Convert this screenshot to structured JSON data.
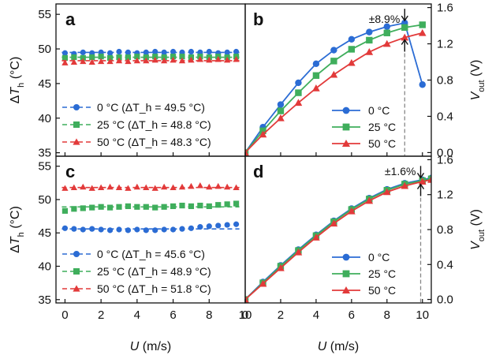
{
  "chart_data": [
    {
      "panel": "a",
      "type": "scatter",
      "xlabel": "U (m/s)",
      "ylabel": "ΔT_h (°C)",
      "xlim": [
        -0.5,
        10
      ],
      "ylim": [
        34.5,
        56.5
      ],
      "xticks": [
        0,
        2,
        4,
        6,
        8,
        10
      ],
      "yticks": [
        35,
        40,
        45,
        50,
        55
      ],
      "x": [
        0,
        0.5,
        1,
        1.5,
        2,
        2.5,
        3,
        3.5,
        4,
        4.5,
        5,
        5.5,
        6,
        6.5,
        7,
        7.5,
        8,
        8.5,
        9,
        9.5
      ],
      "series": [
        {
          "name": "0 °C",
          "legend": "0 °C (ΔT_h = 49.5 °C)",
          "mean": 49.5,
          "color": "#2b6cd4",
          "marker": "circle",
          "values": [
            49.4,
            49.3,
            49.5,
            49.4,
            49.5,
            49.4,
            49.6,
            49.5,
            49.4,
            49.5,
            49.6,
            49.5,
            49.6,
            49.5,
            49.6,
            49.5,
            49.6,
            49.4,
            49.5,
            49.6
          ]
        },
        {
          "name": "25 °C",
          "legend": "25 °C (ΔT_h = 48.8 °C)",
          "mean": 48.8,
          "color": "#3fae5c",
          "marker": "square",
          "values": [
            48.7,
            48.8,
            48.7,
            48.8,
            48.9,
            48.7,
            48.8,
            48.8,
            48.9,
            48.8,
            48.9,
            48.8,
            48.9,
            48.9,
            48.8,
            48.9,
            48.8,
            48.9,
            48.8,
            48.9
          ]
        },
        {
          "name": "50 °C",
          "legend": "50 °C (ΔT_h = 48.3 °C)",
          "mean": 48.3,
          "color": "#e23a3a",
          "marker": "triangle",
          "values": [
            48.0,
            48.1,
            48.2,
            48.1,
            48.2,
            48.2,
            48.3,
            48.2,
            48.3,
            48.3,
            48.4,
            48.3,
            48.4,
            48.3,
            48.4,
            48.5,
            48.4,
            48.5,
            48.4,
            48.5
          ]
        }
      ]
    },
    {
      "panel": "b",
      "type": "line",
      "xlabel": "U (m/s)",
      "ylabel": "V_out (V)",
      "xlim": [
        0,
        10.5
      ],
      "ylim": [
        -0.04,
        1.64
      ],
      "xticks": [
        0,
        2,
        4,
        6,
        8,
        10
      ],
      "yticks": [
        0.0,
        0.4,
        0.8,
        1.2,
        1.6
      ],
      "ytick_labels": [
        "0.0",
        "0.4",
        "0.8",
        "1.2",
        "1.6"
      ],
      "x": [
        0,
        1,
        2,
        3,
        4,
        5,
        6,
        7,
        8,
        9,
        10
      ],
      "series": [
        {
          "name": "0 °C",
          "color": "#2b6cd4",
          "marker": "circle",
          "values": [
            0.0,
            0.28,
            0.53,
            0.77,
            0.98,
            1.13,
            1.25,
            1.33,
            1.39,
            1.43,
            0.75
          ]
        },
        {
          "name": "25 °C",
          "color": "#3fae5c",
          "marker": "square",
          "values": [
            0.0,
            0.24,
            0.46,
            0.66,
            0.85,
            1.01,
            1.14,
            1.24,
            1.32,
            1.38,
            1.41
          ]
        },
        {
          "name": "50 °C",
          "color": "#e23a3a",
          "marker": "triangle",
          "values": [
            0.0,
            0.2,
            0.38,
            0.55,
            0.71,
            0.86,
            0.99,
            1.11,
            1.2,
            1.27,
            1.32
          ]
        }
      ],
      "annotation": {
        "text": "±8.9%",
        "x": 9
      },
      "legend": [
        "0 °C",
        "25 °C",
        "50 °C"
      ]
    },
    {
      "panel": "c",
      "type": "scatter",
      "xlabel": "U (m/s)",
      "ylabel": "ΔT_h (°C)",
      "xlim": [
        -0.5,
        10
      ],
      "ylim": [
        34.5,
        56.5
      ],
      "xticks": [
        0,
        2,
        4,
        6,
        8,
        10
      ],
      "yticks": [
        35,
        40,
        45,
        50,
        55
      ],
      "x": [
        0,
        0.5,
        1,
        1.5,
        2,
        2.5,
        3,
        3.5,
        4,
        4.5,
        5,
        5.5,
        6,
        6.5,
        7,
        7.5,
        8,
        8.5,
        9,
        9.5
      ],
      "series": [
        {
          "name": "0 °C",
          "legend": "0 °C (ΔT_h = 45.6 °C)",
          "mean": 45.6,
          "color": "#2b6cd4",
          "marker": "circle",
          "values": [
            45.7,
            45.6,
            45.5,
            45.6,
            45.5,
            45.4,
            45.5,
            45.4,
            45.5,
            45.4,
            45.4,
            45.5,
            45.5,
            45.6,
            45.7,
            45.9,
            46.0,
            46.1,
            46.2,
            46.3
          ]
        },
        {
          "name": "25 °C",
          "legend": "25 °C (ΔT_h = 48.9 °C)",
          "mean": 48.9,
          "color": "#3fae5c",
          "marker": "square",
          "values": [
            48.3,
            48.6,
            48.7,
            48.8,
            48.9,
            48.8,
            48.9,
            49.0,
            48.9,
            48.9,
            48.8,
            48.9,
            49.0,
            49.1,
            49.0,
            49.1,
            49.0,
            49.2,
            49.3,
            49.4
          ]
        },
        {
          "name": "50 °C",
          "legend": "50 °C (ΔT_h = 51.8 °C)",
          "mean": 51.8,
          "color": "#e23a3a",
          "marker": "triangle",
          "values": [
            51.7,
            51.8,
            51.9,
            51.7,
            51.8,
            51.9,
            51.8,
            51.7,
            51.9,
            51.8,
            51.7,
            51.9,
            51.8,
            51.9,
            52.0,
            52.1,
            51.9,
            52.0,
            51.9,
            51.8
          ]
        }
      ]
    },
    {
      "panel": "d",
      "type": "line",
      "xlabel": "U (m/s)",
      "ylabel": "V_out (V)",
      "xlim": [
        0,
        10.5
      ],
      "ylim": [
        -0.04,
        1.64
      ],
      "xticks": [
        0,
        2,
        4,
        6,
        8,
        10
      ],
      "yticks": [
        0.0,
        0.4,
        0.8,
        1.2,
        1.6
      ],
      "ytick_labels": [
        "0.0",
        "0.4",
        "0.8",
        "1.2",
        "1.6"
      ],
      "x": [
        0,
        1,
        2,
        3,
        4,
        5,
        6,
        7,
        8,
        9,
        10,
        10.5
      ],
      "series": [
        {
          "name": "0 °C",
          "color": "#2b6cd4",
          "marker": "circle",
          "values": [
            0.0,
            0.2,
            0.39,
            0.57,
            0.74,
            0.9,
            1.04,
            1.16,
            1.26,
            1.33,
            1.37,
            1.39
          ]
        },
        {
          "name": "25 °C",
          "color": "#3fae5c",
          "marker": "square",
          "values": [
            0.0,
            0.19,
            0.38,
            0.56,
            0.73,
            0.89,
            1.03,
            1.15,
            1.25,
            1.32,
            1.36,
            1.38
          ]
        },
        {
          "name": "50 °C",
          "color": "#e23a3a",
          "marker": "triangle",
          "values": [
            0.0,
            0.18,
            0.36,
            0.54,
            0.71,
            0.87,
            1.01,
            1.13,
            1.23,
            1.3,
            1.35,
            1.37
          ]
        }
      ],
      "annotation": {
        "text": "±1.6%",
        "x": 9.9
      },
      "legend": [
        "0 °C",
        "25 °C",
        "50 °C"
      ]
    }
  ]
}
